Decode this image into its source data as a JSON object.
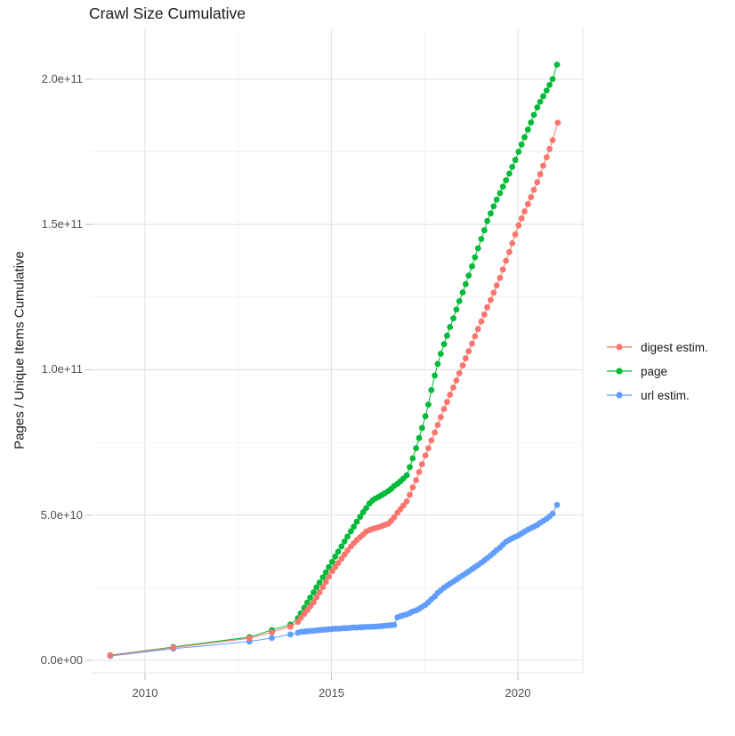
{
  "chart_data": {
    "type": "scatter",
    "title": "Crawl Size Cumulative",
    "xlabel": "",
    "ylabel": "Pages / Unique Items Cumulative",
    "x_ticks": [
      2010,
      2015,
      2020
    ],
    "x_tick_labels": [
      "2010",
      "2015",
      "2020"
    ],
    "x_minor_ticks": [
      2012.5,
      2017.5
    ],
    "y_ticks_e9": [
      0,
      50,
      100,
      150,
      200
    ],
    "y_tick_labels": [
      "0.0e+00",
      "5.0e+10",
      "1.0e+11",
      "1.5e+11",
      "2.0e+11"
    ],
    "y_minor_ticks_e9": [
      25,
      75,
      125,
      175
    ],
    "xlim": [
      2008.55,
      2021.85
    ],
    "ylim_e9": [
      -4,
      217
    ],
    "grid": true,
    "values_unit": "1e9 pages (multiply by 1e9)",
    "legend": {
      "position": "right",
      "items": [
        {
          "label": "digest estim.",
          "color": "#F8766D"
        },
        {
          "label": "page",
          "color": "#00BA38"
        },
        {
          "label": "url estim.",
          "color": "#619CFF"
        }
      ]
    },
    "series": [
      {
        "name": "digest estim.",
        "color": "#F8766D",
        "points": [
          [
            2009.07,
            1.7
          ],
          [
            2010.76,
            4.4
          ],
          [
            2012.8,
            7.6
          ],
          [
            2013.4,
            9.7
          ],
          [
            2013.9,
            11.6
          ],
          [
            2014.1,
            13.2
          ],
          [
            2014.18,
            14.6
          ],
          [
            2014.27,
            16.0
          ],
          [
            2014.35,
            17.3
          ],
          [
            2014.43,
            18.6
          ],
          [
            2014.52,
            20.0
          ],
          [
            2014.6,
            21.7
          ],
          [
            2014.68,
            23.4
          ],
          [
            2014.77,
            25.2
          ],
          [
            2014.85,
            27.0
          ],
          [
            2014.93,
            28.8
          ],
          [
            2015.02,
            30.7
          ],
          [
            2015.1,
            32.1
          ],
          [
            2015.18,
            33.5
          ],
          [
            2015.27,
            35.0
          ],
          [
            2015.35,
            36.4
          ],
          [
            2015.43,
            37.8
          ],
          [
            2015.52,
            39.2
          ],
          [
            2015.6,
            40.3
          ],
          [
            2015.68,
            41.4
          ],
          [
            2015.77,
            42.4
          ],
          [
            2015.85,
            43.3
          ],
          [
            2015.93,
            44.3
          ],
          [
            2016.02,
            44.8
          ],
          [
            2016.1,
            45.2
          ],
          [
            2016.18,
            45.5
          ],
          [
            2016.27,
            45.8
          ],
          [
            2016.35,
            46.2
          ],
          [
            2016.43,
            46.6
          ],
          [
            2016.52,
            47.0
          ],
          [
            2016.6,
            48.0
          ],
          [
            2016.68,
            49.2
          ],
          [
            2016.77,
            50.8
          ],
          [
            2016.85,
            52.0
          ],
          [
            2016.93,
            53.3
          ],
          [
            2017.02,
            54.7
          ],
          [
            2017.1,
            57.0
          ],
          [
            2017.18,
            59.5
          ],
          [
            2017.27,
            62.0
          ],
          [
            2017.35,
            64.8
          ],
          [
            2017.43,
            67.5
          ],
          [
            2017.52,
            70.5
          ],
          [
            2017.6,
            73.0
          ],
          [
            2017.68,
            75.7
          ],
          [
            2017.77,
            78.4
          ],
          [
            2017.85,
            81.0
          ],
          [
            2017.93,
            83.7
          ],
          [
            2018.02,
            86.5
          ],
          [
            2018.1,
            88.9
          ],
          [
            2018.18,
            91.4
          ],
          [
            2018.27,
            93.9
          ],
          [
            2018.35,
            96.3
          ],
          [
            2018.43,
            98.8
          ],
          [
            2018.52,
            101.5
          ],
          [
            2018.6,
            103.9
          ],
          [
            2018.68,
            106.4
          ],
          [
            2018.77,
            109.0
          ],
          [
            2018.85,
            111.5
          ],
          [
            2018.93,
            114.0
          ],
          [
            2019.02,
            116.6
          ],
          [
            2019.1,
            119.0
          ],
          [
            2019.18,
            121.5
          ],
          [
            2019.27,
            124.0
          ],
          [
            2019.35,
            126.5
          ],
          [
            2019.43,
            129.0
          ],
          [
            2019.52,
            131.6
          ],
          [
            2019.6,
            134.5
          ],
          [
            2019.68,
            137.5
          ],
          [
            2019.77,
            140.5
          ],
          [
            2019.85,
            143.5
          ],
          [
            2019.93,
            146.6
          ],
          [
            2020.02,
            149.7
          ],
          [
            2020.1,
            152.1
          ],
          [
            2020.18,
            154.5
          ],
          [
            2020.27,
            157.0
          ],
          [
            2020.35,
            159.4
          ],
          [
            2020.43,
            161.9
          ],
          [
            2020.52,
            164.5
          ],
          [
            2020.6,
            167.3
          ],
          [
            2020.68,
            170.2
          ],
          [
            2020.77,
            173.1
          ],
          [
            2020.85,
            176.0
          ],
          [
            2020.93,
            179.0
          ],
          [
            2021.07,
            185.0
          ]
        ]
      },
      {
        "name": "page",
        "color": "#00BA38",
        "points": [
          [
            2009.07,
            1.8
          ],
          [
            2010.76,
            4.6
          ],
          [
            2012.8,
            8.0
          ],
          [
            2013.4,
            10.4
          ],
          [
            2013.9,
            12.3
          ],
          [
            2014.1,
            14.5
          ],
          [
            2014.18,
            16.2
          ],
          [
            2014.27,
            18.1
          ],
          [
            2014.35,
            19.9
          ],
          [
            2014.43,
            21.6
          ],
          [
            2014.52,
            23.4
          ],
          [
            2014.6,
            25.1
          ],
          [
            2014.68,
            26.8
          ],
          [
            2014.77,
            28.6
          ],
          [
            2014.85,
            30.3
          ],
          [
            2014.93,
            32.1
          ],
          [
            2015.02,
            33.9
          ],
          [
            2015.1,
            35.7
          ],
          [
            2015.18,
            37.4
          ],
          [
            2015.27,
            39.2
          ],
          [
            2015.35,
            40.9
          ],
          [
            2015.43,
            42.6
          ],
          [
            2015.52,
            44.4
          ],
          [
            2015.6,
            46.0
          ],
          [
            2015.68,
            47.7
          ],
          [
            2015.77,
            49.4
          ],
          [
            2015.85,
            51.0
          ],
          [
            2015.93,
            52.4
          ],
          [
            2016.02,
            54.0
          ],
          [
            2016.1,
            55.0
          ],
          [
            2016.18,
            55.7
          ],
          [
            2016.27,
            56.3
          ],
          [
            2016.35,
            56.9
          ],
          [
            2016.43,
            57.5
          ],
          [
            2016.52,
            58.2
          ],
          [
            2016.6,
            59.0
          ],
          [
            2016.68,
            60.0
          ],
          [
            2016.77,
            60.8
          ],
          [
            2016.85,
            61.6
          ],
          [
            2016.93,
            62.6
          ],
          [
            2017.02,
            63.7
          ],
          [
            2017.1,
            66.5
          ],
          [
            2017.18,
            69.5
          ],
          [
            2017.27,
            73.0
          ],
          [
            2017.35,
            76.5
          ],
          [
            2017.43,
            80.0
          ],
          [
            2017.52,
            84.0
          ],
          [
            2017.6,
            88.0
          ],
          [
            2017.68,
            93.0
          ],
          [
            2017.77,
            98.0
          ],
          [
            2017.85,
            102.0
          ],
          [
            2017.93,
            105.5
          ],
          [
            2018.02,
            108.8
          ],
          [
            2018.1,
            111.7
          ],
          [
            2018.18,
            114.7
          ],
          [
            2018.27,
            117.7
          ],
          [
            2018.35,
            120.7
          ],
          [
            2018.43,
            123.6
          ],
          [
            2018.52,
            126.6
          ],
          [
            2018.6,
            129.4
          ],
          [
            2018.68,
            132.4
          ],
          [
            2018.77,
            135.6
          ],
          [
            2018.85,
            138.7
          ],
          [
            2018.93,
            141.8
          ],
          [
            2019.02,
            145.0
          ],
          [
            2019.1,
            148.0
          ],
          [
            2019.18,
            151.2
          ],
          [
            2019.27,
            153.8
          ],
          [
            2019.35,
            156.2
          ],
          [
            2019.43,
            158.5
          ],
          [
            2019.52,
            160.8
          ],
          [
            2019.6,
            163.0
          ],
          [
            2019.68,
            165.2
          ],
          [
            2019.77,
            167.5
          ],
          [
            2019.85,
            169.8
          ],
          [
            2019.93,
            172.2
          ],
          [
            2020.02,
            175.0
          ],
          [
            2020.1,
            177.5
          ],
          [
            2020.18,
            180.0
          ],
          [
            2020.27,
            182.6
          ],
          [
            2020.35,
            185.1
          ],
          [
            2020.43,
            187.7
          ],
          [
            2020.52,
            190.3
          ],
          [
            2020.6,
            192.2
          ],
          [
            2020.68,
            194.1
          ],
          [
            2020.77,
            196.1
          ],
          [
            2020.85,
            198.0
          ],
          [
            2020.93,
            200.0
          ],
          [
            2021.05,
            205.0
          ]
        ]
      },
      {
        "name": "url estim.",
        "color": "#619CFF",
        "points": [
          [
            2009.07,
            1.5
          ],
          [
            2010.76,
            4.0
          ],
          [
            2012.8,
            6.5
          ],
          [
            2013.4,
            7.7
          ],
          [
            2013.9,
            8.9
          ],
          [
            2014.1,
            9.5
          ],
          [
            2014.18,
            9.8
          ],
          [
            2014.27,
            9.9
          ],
          [
            2014.35,
            10.0
          ],
          [
            2014.43,
            10.1
          ],
          [
            2014.52,
            10.2
          ],
          [
            2014.6,
            10.3
          ],
          [
            2014.68,
            10.4
          ],
          [
            2014.77,
            10.5
          ],
          [
            2014.85,
            10.6
          ],
          [
            2014.93,
            10.7
          ],
          [
            2015.02,
            10.8
          ],
          [
            2015.1,
            10.9
          ],
          [
            2015.18,
            10.9
          ],
          [
            2015.27,
            11.0
          ],
          [
            2015.35,
            11.1
          ],
          [
            2015.43,
            11.1
          ],
          [
            2015.52,
            11.2
          ],
          [
            2015.6,
            11.3
          ],
          [
            2015.68,
            11.3
          ],
          [
            2015.77,
            11.4
          ],
          [
            2015.85,
            11.4
          ],
          [
            2015.93,
            11.5
          ],
          [
            2016.02,
            11.5
          ],
          [
            2016.1,
            11.6
          ],
          [
            2016.18,
            11.6
          ],
          [
            2016.27,
            11.7
          ],
          [
            2016.35,
            11.8
          ],
          [
            2016.43,
            11.9
          ],
          [
            2016.52,
            12.0
          ],
          [
            2016.6,
            12.1
          ],
          [
            2016.68,
            12.2
          ],
          [
            2016.77,
            14.8
          ],
          [
            2016.85,
            15.2
          ],
          [
            2016.93,
            15.5
          ],
          [
            2017.02,
            15.8
          ],
          [
            2017.1,
            16.3
          ],
          [
            2017.18,
            16.8
          ],
          [
            2017.27,
            17.2
          ],
          [
            2017.35,
            17.7
          ],
          [
            2017.43,
            18.4
          ],
          [
            2017.52,
            19.1
          ],
          [
            2017.6,
            20.0
          ],
          [
            2017.68,
            21.0
          ],
          [
            2017.77,
            22.0
          ],
          [
            2017.85,
            23.2
          ],
          [
            2017.93,
            24.1
          ],
          [
            2018.02,
            25.0
          ],
          [
            2018.1,
            25.7
          ],
          [
            2018.18,
            26.4
          ],
          [
            2018.27,
            27.1
          ],
          [
            2018.35,
            27.8
          ],
          [
            2018.43,
            28.5
          ],
          [
            2018.52,
            29.2
          ],
          [
            2018.6,
            29.9
          ],
          [
            2018.68,
            30.6
          ],
          [
            2018.77,
            31.4
          ],
          [
            2018.85,
            32.1
          ],
          [
            2018.93,
            32.8
          ],
          [
            2019.02,
            33.6
          ],
          [
            2019.1,
            34.4
          ],
          [
            2019.18,
            35.2
          ],
          [
            2019.27,
            36.1
          ],
          [
            2019.35,
            37.0
          ],
          [
            2019.43,
            37.9
          ],
          [
            2019.52,
            38.8
          ],
          [
            2019.6,
            39.8
          ],
          [
            2019.68,
            40.8
          ],
          [
            2019.77,
            41.5
          ],
          [
            2019.85,
            42.0
          ],
          [
            2019.93,
            42.5
          ],
          [
            2020.02,
            43.0
          ],
          [
            2020.1,
            43.7
          ],
          [
            2020.18,
            44.3
          ],
          [
            2020.27,
            45.0
          ],
          [
            2020.35,
            45.5
          ],
          [
            2020.43,
            46.0
          ],
          [
            2020.52,
            46.6
          ],
          [
            2020.6,
            47.3
          ],
          [
            2020.68,
            48.0
          ],
          [
            2020.77,
            48.7
          ],
          [
            2020.85,
            49.5
          ],
          [
            2020.93,
            50.5
          ],
          [
            2021.05,
            53.5
          ]
        ]
      }
    ]
  },
  "style": {
    "grid_major_color": "#e3e3e3",
    "grid_minor_color": "#f0f0f0",
    "panel_edge_color": "#e6e6e6",
    "tick_color": "#c9c9c9",
    "axis_text_color": "#4d4d4d",
    "title_color": "#1a1a1a"
  }
}
